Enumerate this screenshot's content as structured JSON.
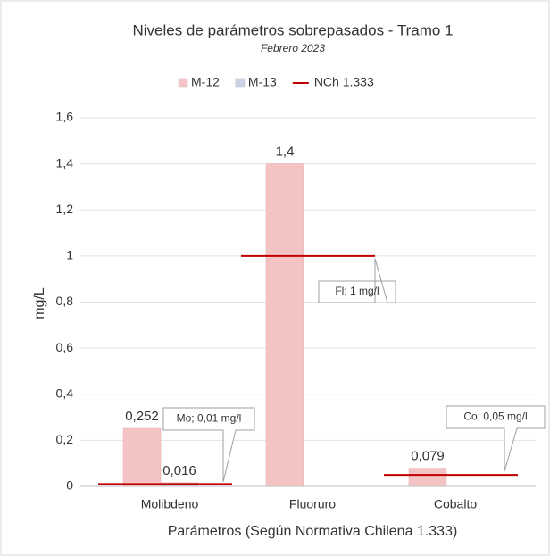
{
  "chart_data": {
    "type": "bar",
    "title": "Niveles de parámetros sobrepasados - Tramo 1",
    "subtitle": "Febrero 2023",
    "x_label": "Parámetros (Según Normativa Chilena 1.333)",
    "y_label": "mg/L",
    "categories": [
      "Molibdeno",
      "Fluoruro",
      "Cobalto"
    ],
    "series": [
      {
        "name": "M-12",
        "color": "#f4c4c4",
        "kind": "bar",
        "values": [
          0.252,
          1.4,
          0.079
        ],
        "value_labels": [
          "0,252",
          "1,4",
          "0,079"
        ]
      },
      {
        "name": "M-13",
        "color": "#cdd0e6",
        "kind": "bar",
        "values": [
          0.016,
          null,
          null
        ],
        "value_labels": [
          "0,016",
          null,
          null
        ]
      },
      {
        "name": "NCh 1.333",
        "color": "#c00000",
        "kind": "level",
        "values": [
          0.01,
          1,
          0.05
        ]
      }
    ],
    "annotations": [
      "Mo; 0,01 mg/l",
      "Fl; 1 mg/l",
      "Co; 0,05 mg/l"
    ],
    "ylim": [
      0,
      1.6
    ],
    "yticks": [
      0,
      {
        "value": 0.2,
        "label": "0,2"
      },
      {
        "value": 0.4,
        "label": "0,4"
      },
      {
        "value": 0.6,
        "label": "0,6"
      },
      {
        "value": 0.8,
        "label": "0,8"
      },
      1,
      {
        "value": 1.2,
        "label": "1,2"
      },
      {
        "value": 1.4,
        "label": "1,4"
      },
      {
        "value": 1.6,
        "label": "1,6"
      }
    ],
    "grid": true
  }
}
